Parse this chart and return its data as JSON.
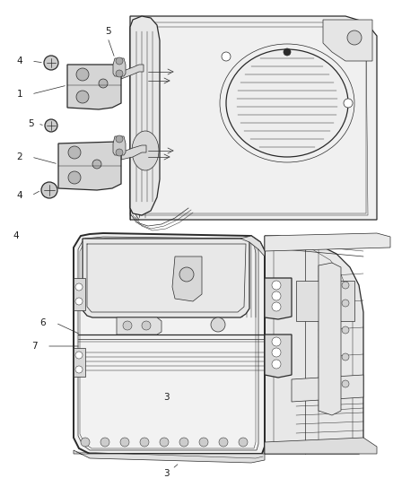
{
  "bg_color": "#ffffff",
  "line_color": "#2a2a2a",
  "label_color": "#1a1a1a",
  "fig_width": 4.38,
  "fig_height": 5.33,
  "dpi": 100,
  "lw_main": 0.9,
  "lw_thick": 1.4,
  "lw_thin": 0.5,
  "lw_xtra": 0.35,
  "font_size": 7.5
}
